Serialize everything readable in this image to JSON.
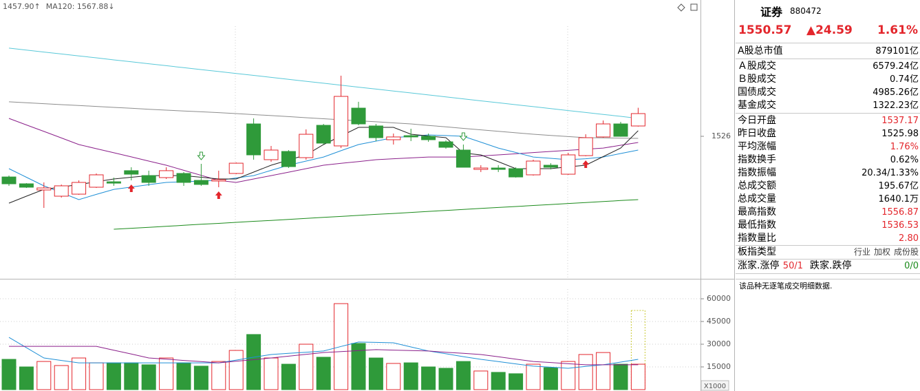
{
  "chart_data": [
    {
      "type": "candlestick",
      "annotations": [
        {
          "text": "1457.90↑",
          "color": "#1a8a1a"
        },
        {
          "text": "MA120: 1567.88↓",
          "color": "#1a9eb5"
        }
      ],
      "up_color": "#e3262c",
      "down_color": "#2f9a3a",
      "open": [
        1482.0,
        1474.6,
        1467.9,
        1461.2,
        1463.4,
        1470.9,
        1476.8,
        1488.8,
        1483.5,
        1481.3,
        1485.8,
        1478.3,
        1477.6,
        1485.8,
        1539.4,
        1500.7,
        1509.6,
        1502.9,
        1537.9,
        1515.6,
        1556.5,
        1537.2,
        1522.3,
        1526.7,
        1526.0,
        1520.0,
        1511.1,
        1490.2,
        1491.7,
        1491.0,
        1484.3,
        1494.7,
        1485.0,
        1505.1,
        1525.3,
        1539.4,
        1537.17
      ],
      "high": [
        1483.5,
        1475.3,
        1476.1,
        1473.8,
        1478.3,
        1485.8,
        1481.3,
        1492.5,
        1488.8,
        1492.5,
        1487.3,
        1496.2,
        1488.8,
        1497.7,
        1545.4,
        1515.6,
        1511.1,
        1533.5,
        1539.4,
        1591.6,
        1563.3,
        1539.4,
        1529.0,
        1534.2,
        1529.0,
        1521.5,
        1517.1,
        1494.7,
        1494.7,
        1492.5,
        1500.7,
        1496.9,
        1508.1,
        1528.2,
        1543.1,
        1541.6,
        1556.87
      ],
      "low": [
        1472.4,
        1470.1,
        1448.5,
        1459.7,
        1462.7,
        1470.1,
        1472.4,
        1478.3,
        1472.4,
        1479.8,
        1472.4,
        1472.4,
        1470.9,
        1485.0,
        1500.7,
        1498.4,
        1491.7,
        1500.7,
        1517.1,
        1513.3,
        1537.9,
        1520.8,
        1517.1,
        1520.8,
        1520.0,
        1512.6,
        1492.5,
        1487.3,
        1487.3,
        1481.3,
        1483.5,
        1490.2,
        1484.3,
        1504.4,
        1524.5,
        1525.5,
        1536.53
      ],
      "close": [
        1474.6,
        1470.9,
        1470.1,
        1472.4,
        1476.1,
        1484.3,
        1475.3,
        1485.0,
        1476.1,
        1488.8,
        1476.1,
        1473.9,
        1479.1,
        1496.9,
        1505.9,
        1511.1,
        1493.2,
        1528.2,
        1518.6,
        1569.2,
        1539.4,
        1524.5,
        1525.3,
        1525.3,
        1522.3,
        1514.1,
        1492.5,
        1491.7,
        1490.2,
        1482.0,
        1499.2,
        1492.5,
        1505.9,
        1524.5,
        1539.4,
        1525.98,
        1550.57
      ],
      "lines": [
        {
          "color": "#58c8d8",
          "values": [
            1621.4,
            1619.3,
            1617.2,
            1615.1,
            1613.0,
            1610.9,
            1608.7,
            1606.6,
            1604.5,
            1602.4,
            1600.3,
            1598.2,
            1596.1,
            1594.0,
            1591.9,
            1589.8,
            1587.6,
            1585.5,
            1583.4,
            1581.3,
            1579.2,
            1577.1,
            1575.0,
            1572.9,
            1570.8,
            1568.7,
            1566.5,
            1564.4,
            1562.3,
            1560.2,
            1558.1,
            1556.0,
            1553.9,
            1551.8,
            1549.7,
            1547.6,
            1545.4
          ]
        },
        {
          "color": "#8c8c8c",
          "values": [
            1563.3,
            1562.3,
            1561.3,
            1560.3,
            1559.3,
            1558.3,
            1557.3,
            1556.3,
            1555.3,
            1554.3,
            1553.4,
            1552.5,
            1551.6,
            1550.6,
            1549.5,
            1548.4,
            1547.3,
            1546.1,
            1545.0,
            1543.9,
            1542.8,
            1541.7,
            1540.5,
            1539.4,
            1537.8,
            1536.2,
            1534.6,
            1533.0,
            1531.4,
            1529.8,
            1528.2,
            1527.0,
            1525.7,
            1524.5,
            1524.3,
            1524.0,
            1523.8
          ]
        },
        {
          "color": "#8a1f8a",
          "values": [
            1545.4,
            1538.3,
            1531.3,
            1524.2,
            1517.1,
            1512.6,
            1508.2,
            1503.7,
            1499.2,
            1494.7,
            1489.2,
            1483.8,
            1478.3,
            1476.1,
            1479.8,
            1483.5,
            1487.2,
            1491.0,
            1494.7,
            1496.7,
            1498.7,
            1500.7,
            1501.7,
            1502.6,
            1503.6,
            1503.6,
            1503.6,
            1504.8,
            1505.9,
            1507.1,
            1508.4,
            1509.6,
            1510.8,
            1512.1,
            1513.3,
            1516.3,
            1519.3
          ]
        },
        {
          "color": "#1e8fd6",
          "values": [
            1491.0,
            1481.7,
            1472.4,
            1465.0,
            1457.5,
            1463.1,
            1468.6,
            1471.1,
            1473.6,
            1476.1,
            1476.8,
            1477.6,
            1478.3,
            1480.9,
            1483.5,
            1489.1,
            1494.7,
            1499.2,
            1503.6,
            1510.4,
            1517.1,
            1520.8,
            1524.5,
            1526.0,
            1527.5,
            1526.8,
            1526.0,
            1519.7,
            1513.3,
            1508.5,
            1503.6,
            1502.2,
            1500.7,
            1501.7,
            1503.6,
            1507.4,
            1511.1
          ]
        },
        {
          "color": "#222222",
          "values": [
            1453.7,
            1461.2,
            1468.6,
            1471.2,
            1473.8,
            1476.8,
            1479.8,
            1481.7,
            1483.5,
            1483.5,
            1483.5,
            1481.7,
            1479.8,
            1479.8,
            1487.3,
            1494.7,
            1500.3,
            1505.9,
            1517.1,
            1526.4,
            1535.7,
            1535.7,
            1535.7,
            1528.2,
            1526.4,
            1524.5,
            1507.8,
            1505.9,
            1498.5,
            1491.0,
            1491.0,
            1491.0,
            1492.9,
            1494.7,
            1504.0,
            1513.3,
            1532.0
          ]
        },
        {
          "color": "#1a8a1a",
          "values": [
            null,
            null,
            null,
            null,
            null,
            null,
            1425.4,
            1426.5,
            1427.5,
            1428.6,
            1429.7,
            1430.8,
            1431.8,
            1432.9,
            1434.0,
            1435.0,
            1436.1,
            1437.2,
            1438.3,
            1439.3,
            1440.4,
            1441.5,
            1442.5,
            1443.6,
            1444.7,
            1445.8,
            1446.8,
            1447.9,
            1449.0,
            1450.0,
            1451.1,
            1452.2,
            1453.3,
            1454.3,
            1455.4,
            1456.5,
            1457.5
          ]
        }
      ],
      "signals": {
        "up": [
          7,
          12,
          33
        ],
        "down": [
          11,
          26
        ]
      },
      "ylim": [
        1371.8,
        1673.5
      ],
      "yticks": [
        1526
      ],
      "grid": false
    },
    {
      "type": "bar",
      "values": [
        20000,
        15000,
        18600,
        15900,
        20900,
        17700,
        17700,
        17700,
        16400,
        20900,
        17700,
        15500,
        18600,
        25900,
        36400,
        20900,
        16800,
        30000,
        21400,
        56800,
        30500,
        20900,
        17300,
        17700,
        15000,
        14100,
        18600,
        12300,
        11400,
        10500,
        16800,
        14500,
        18600,
        23200,
        24500,
        16800,
        16800
      ],
      "projected_value": 52300,
      "projected_color": "#c8c832",
      "lines": [
        {
          "color": "#1e8fd6",
          "values": [
            34500,
            27700,
            20900,
            19300,
            17700,
            17700,
            17700,
            17700,
            17700,
            17700,
            17700,
            17700,
            17700,
            19500,
            21400,
            23200,
            24000,
            24700,
            25500,
            28500,
            31400,
            31200,
            30900,
            28200,
            25500,
            23700,
            21800,
            20000,
            18500,
            17000,
            15500,
            14800,
            14100,
            15300,
            16400,
            18200,
            20000
          ]
        },
        {
          "color": "#8a1f8a",
          "values": [
            28600,
            28600,
            28600,
            28600,
            28600,
            28600,
            26000,
            23500,
            20900,
            20100,
            19300,
            18500,
            17700,
            18800,
            19800,
            20900,
            22100,
            23300,
            24500,
            25100,
            25800,
            26400,
            26100,
            25800,
            25500,
            24700,
            24000,
            23200,
            21700,
            20100,
            18600,
            17900,
            17100,
            16400,
            16400,
            16400,
            16400
          ]
        }
      ],
      "unit_label": "X1000",
      "ylim": [
        0,
        73200
      ],
      "yticks": [
        15000,
        30000,
        45000,
        60000
      ],
      "grid": true
    }
  ],
  "panel": {
    "name": "证券",
    "code": "880472",
    "price": "1550.57",
    "change": "▲24.59",
    "change_pct": "1.61%",
    "rows": [
      {
        "label": "A股总市值",
        "value": "879101亿",
        "color": "#000000"
      },
      {
        "label": "Ａ股成交",
        "value": "6579.24亿",
        "color": "#000000"
      },
      {
        "label": "Ｂ股成交",
        "value": "0.74亿",
        "color": "#000000"
      },
      {
        "label": "国债成交",
        "value": "4985.26亿",
        "color": "#000000"
      },
      {
        "label": "基金成交",
        "value": "1322.23亿",
        "color": "#000000"
      },
      {
        "label": "今日开盘",
        "value": "1537.17",
        "color": "#e3262c"
      },
      {
        "label": "昨日收盘",
        "value": "1525.98",
        "color": "#000000"
      },
      {
        "label": "平均涨幅",
        "value": "1.76%",
        "color": "#e3262c"
      },
      {
        "label": "指数换手",
        "value": "0.62%",
        "color": "#000000"
      },
      {
        "label": "指数振幅",
        "value": "20.34/1.33%",
        "color": "#000000"
      },
      {
        "label": "总成交额",
        "value": "195.67亿",
        "color": "#000000"
      },
      {
        "label": "总成交量",
        "value": "1640.1万",
        "color": "#000000"
      },
      {
        "label": "最高指数",
        "value": "1556.87",
        "color": "#e3262c"
      },
      {
        "label": "最低指数",
        "value": "1536.53",
        "color": "#e3262c"
      },
      {
        "label": "指数量比",
        "value": "2.80",
        "color": "#e3262c"
      }
    ],
    "type_label": "板指类型",
    "type_values": [
      "行业",
      "加权",
      "成份股"
    ],
    "breadth": [
      {
        "text": "涨家.涨停",
        "color": "#000000"
      },
      {
        "text": "50/1",
        "color": "#e3262c"
      },
      {
        "text": "跌家.跌停",
        "color": "#000000"
      },
      {
        "text": "0/0",
        "color": "#1a8a1a"
      }
    ],
    "note": "该品种无逐笔成交明细数据."
  }
}
